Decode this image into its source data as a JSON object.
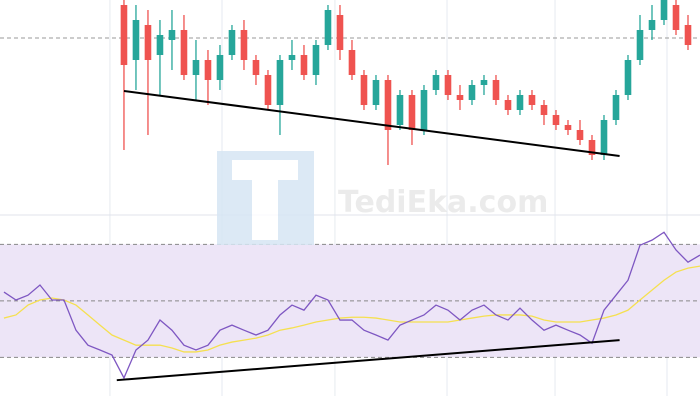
{
  "watermark": "TediEka.com",
  "chart_data": [
    {
      "type": "candlestick",
      "xlim": [
        -10.33,
        48
      ],
      "ylim": [
        0,
        215
      ],
      "xgrid": [
        -1.17,
        8.17,
        17.58,
        26.92,
        35.92,
        45.25
      ],
      "level": 177,
      "up_color": "#26a69a",
      "down_color": "#ef5350",
      "open": [
        210,
        155,
        190,
        160,
        175,
        185,
        140,
        155,
        135,
        160,
        185,
        155,
        140,
        110,
        155,
        160,
        140,
        170,
        200,
        165,
        140,
        110,
        135,
        90,
        120,
        85,
        125,
        140,
        120,
        115,
        130,
        135,
        115,
        105,
        120,
        110,
        100,
        90,
        85,
        75,
        60,
        95,
        120,
        155,
        185,
        195,
        210,
        190
      ],
      "high": [
        215,
        210,
        205,
        195,
        205,
        200,
        175,
        165,
        170,
        190,
        195,
        160,
        145,
        160,
        175,
        170,
        175,
        210,
        210,
        175,
        145,
        140,
        140,
        125,
        125,
        130,
        145,
        145,
        130,
        135,
        140,
        140,
        120,
        125,
        125,
        115,
        105,
        95,
        95,
        80,
        100,
        125,
        160,
        200,
        210,
        215,
        215,
        200
      ],
      "low": [
        65,
        125,
        80,
        120,
        145,
        135,
        115,
        110,
        125,
        155,
        145,
        130,
        105,
        80,
        145,
        135,
        130,
        165,
        155,
        135,
        105,
        105,
        50,
        85,
        70,
        80,
        120,
        115,
        105,
        110,
        120,
        110,
        100,
        100,
        105,
        90,
        85,
        80,
        70,
        55,
        55,
        90,
        115,
        150,
        175,
        190,
        180,
        165
      ],
      "close": [
        150,
        195,
        155,
        180,
        185,
        140,
        155,
        135,
        160,
        185,
        155,
        140,
        110,
        155,
        160,
        140,
        170,
        205,
        165,
        140,
        110,
        135,
        85,
        120,
        85,
        125,
        140,
        120,
        115,
        130,
        135,
        115,
        105,
        120,
        110,
        100,
        90,
        85,
        75,
        60,
        95,
        120,
        155,
        185,
        195,
        215,
        185,
        170
      ],
      "trendline": {
        "x": [
          0,
          41.3
        ],
        "y": [
          124,
          59
        ],
        "color": "#000000"
      }
    },
    {
      "type": "line",
      "xlim": [
        -10.33,
        48
      ],
      "ylim": [
        16.3,
        80.4
      ],
      "levels": [
        30,
        50,
        70
      ],
      "band_color": "#ede5f7",
      "x": [
        -10,
        -9,
        -8,
        -7,
        -6,
        -5,
        -4,
        -3,
        -2,
        -1,
        0,
        1,
        2,
        3,
        4,
        5,
        6,
        7,
        8,
        9,
        10,
        11,
        12,
        13,
        14,
        15,
        16,
        17,
        18,
        19,
        20,
        21,
        22,
        23,
        24,
        25,
        26,
        27,
        28,
        29,
        30,
        31,
        32,
        33,
        34,
        35,
        36,
        37,
        38,
        39,
        40,
        41,
        42,
        43,
        44,
        45,
        46,
        47,
        48
      ],
      "series": [
        {
          "color": "#7e57c2",
          "values": [
            53.1,
            50.3,
            52.0,
            55.6,
            50.3,
            50.3,
            39.6,
            34.3,
            32.6,
            30.8,
            22.7,
            32.6,
            36.1,
            43.2,
            39.6,
            34.3,
            32.6,
            34.3,
            39.6,
            41.4,
            39.6,
            37.9,
            39.6,
            45.0,
            48.5,
            46.7,
            52.0,
            50.3,
            43.2,
            43.2,
            39.6,
            37.9,
            36.1,
            41.4,
            43.2,
            45.0,
            48.5,
            46.7,
            43.2,
            46.7,
            48.5,
            45.0,
            43.2,
            47.4,
            43.2,
            39.6,
            41.4,
            39.6,
            37.9,
            35.0,
            46.7,
            52.0,
            57.3,
            69.7,
            71.5,
            74.3,
            68.0,
            63.7,
            66.2
          ]
        },
        {
          "color": "#f5e050",
          "values": [
            43.9,
            45.0,
            48.5,
            50.3,
            51.0,
            50.3,
            48.5,
            45.0,
            41.4,
            37.9,
            36.1,
            34.3,
            34.3,
            34.3,
            33.3,
            31.9,
            31.9,
            32.6,
            34.3,
            35.4,
            36.1,
            36.8,
            37.9,
            39.6,
            40.4,
            41.4,
            42.5,
            43.2,
            43.9,
            44.2,
            44.2,
            43.9,
            43.2,
            42.5,
            42.5,
            42.5,
            42.5,
            42.5,
            43.2,
            43.9,
            44.6,
            45.0,
            45.0,
            45.0,
            44.6,
            43.2,
            42.5,
            42.5,
            42.5,
            43.2,
            43.9,
            45.0,
            46.7,
            50.3,
            53.8,
            57.3,
            60.2,
            61.6,
            62.3
          ]
        }
      ],
      "trendline": {
        "x": [
          -0.6,
          41.3
        ],
        "y": [
          21.9,
          36.1
        ],
        "color": "#000000"
      }
    }
  ]
}
